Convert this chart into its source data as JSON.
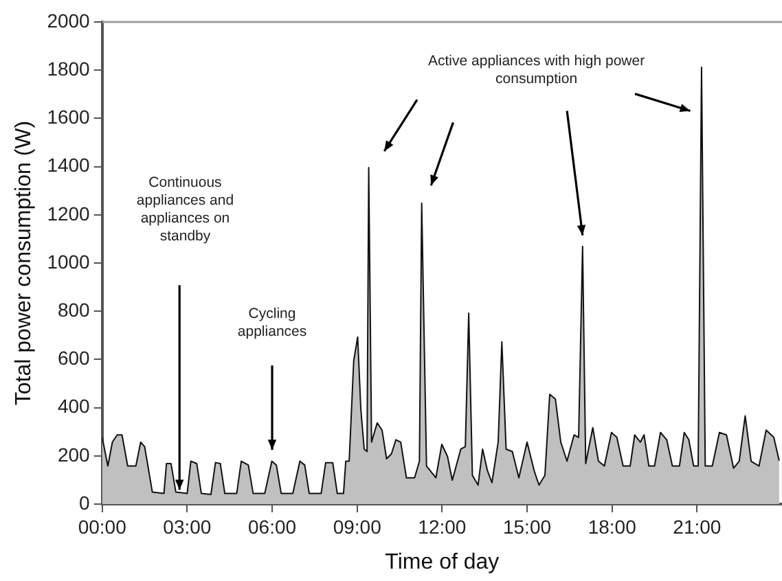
{
  "chart_data": {
    "type": "area",
    "xlabel": "Time of day",
    "ylabel": "Total power consumption (W)",
    "x": [
      0,
      0.2,
      0.36,
      0.53,
      0.7,
      0.9,
      1.19,
      1.36,
      1.5,
      1.77,
      2.18,
      2.27,
      2.43,
      2.6,
      3.0,
      3.13,
      3.34,
      3.5,
      3.84,
      4.0,
      4.17,
      4.33,
      4.75,
      4.91,
      5.16,
      5.33,
      5.74,
      5.99,
      6.15,
      6.32,
      6.73,
      6.98,
      7.15,
      7.31,
      7.73,
      7.89,
      8.14,
      8.3,
      8.52,
      8.6,
      8.72,
      8.88,
      9.02,
      9.13,
      9.25,
      9.35,
      9.41,
      9.51,
      9.71,
      9.88,
      10.04,
      10.21,
      10.37,
      10.54,
      10.74,
      11.03,
      11.2,
      11.28,
      11.45,
      11.78,
      11.99,
      12.19,
      12.36,
      12.66,
      12.82,
      12.94,
      13.07,
      13.27,
      13.43,
      13.6,
      13.76,
      13.98,
      14.11,
      14.26,
      14.48,
      14.71,
      15.0,
      15.25,
      15.42,
      15.63,
      15.8,
      16.0,
      16.19,
      16.41,
      16.66,
      16.82,
      16.96,
      17.07,
      17.32,
      17.52,
      17.73,
      17.98,
      18.17,
      18.39,
      18.64,
      18.8,
      19.0,
      19.13,
      19.3,
      19.5,
      19.71,
      19.93,
      20.13,
      20.38,
      20.55,
      20.71,
      20.88,
      21.04,
      21.16,
      21.29,
      21.54,
      21.79,
      22.04,
      22.29,
      22.49,
      22.7,
      22.91,
      23.19,
      23.44,
      23.71,
      23.9
    ],
    "values": [
      277,
      158,
      257,
      287,
      287,
      158,
      158,
      257,
      238,
      50,
      44,
      168,
      168,
      50,
      44,
      178,
      168,
      44,
      40,
      172,
      168,
      44,
      44,
      178,
      162,
      44,
      44,
      178,
      162,
      44,
      44,
      178,
      162,
      44,
      44,
      172,
      172,
      44,
      44,
      178,
      178,
      594,
      693,
      396,
      228,
      218,
      1396,
      257,
      337,
      307,
      188,
      208,
      267,
      257,
      109,
      109,
      178,
      1248,
      158,
      109,
      248,
      198,
      99,
      228,
      238,
      792,
      119,
      79,
      228,
      139,
      89,
      257,
      673,
      228,
      218,
      109,
      257,
      139,
      79,
      119,
      455,
      436,
      257,
      178,
      287,
      277,
      1069,
      168,
      317,
      178,
      158,
      297,
      277,
      158,
      158,
      287,
      257,
      287,
      158,
      158,
      297,
      267,
      158,
      158,
      297,
      267,
      158,
      158,
      1812,
      158,
      158,
      297,
      287,
      149,
      178,
      366,
      178,
      158,
      307,
      277,
      180
    ],
    "color": "#c0c0c0",
    "marker": "none",
    "line_style": "solid",
    "grid": false,
    "legend": false,
    "xlim": [
      0,
      24
    ],
    "xticks": [
      {
        "value": 0,
        "label": "00:00"
      },
      {
        "value": 3,
        "label": "03:00"
      },
      {
        "value": 6,
        "label": "06:00"
      },
      {
        "value": 9,
        "label": "09:00"
      },
      {
        "value": 12,
        "label": "12:00"
      },
      {
        "value": 15,
        "label": "15:00"
      },
      {
        "value": 18,
        "label": "18:00"
      },
      {
        "value": 21,
        "label": "21:00"
      }
    ],
    "ylim": [
      0,
      2000
    ],
    "yticks": [
      0,
      200,
      400,
      600,
      800,
      1000,
      1200,
      1400,
      1600,
      1800,
      2000
    ],
    "annotations": [
      "Continuous appliances and appliances on standby",
      "Cycling appliances",
      "Active appliances with high power consumption"
    ]
  }
}
